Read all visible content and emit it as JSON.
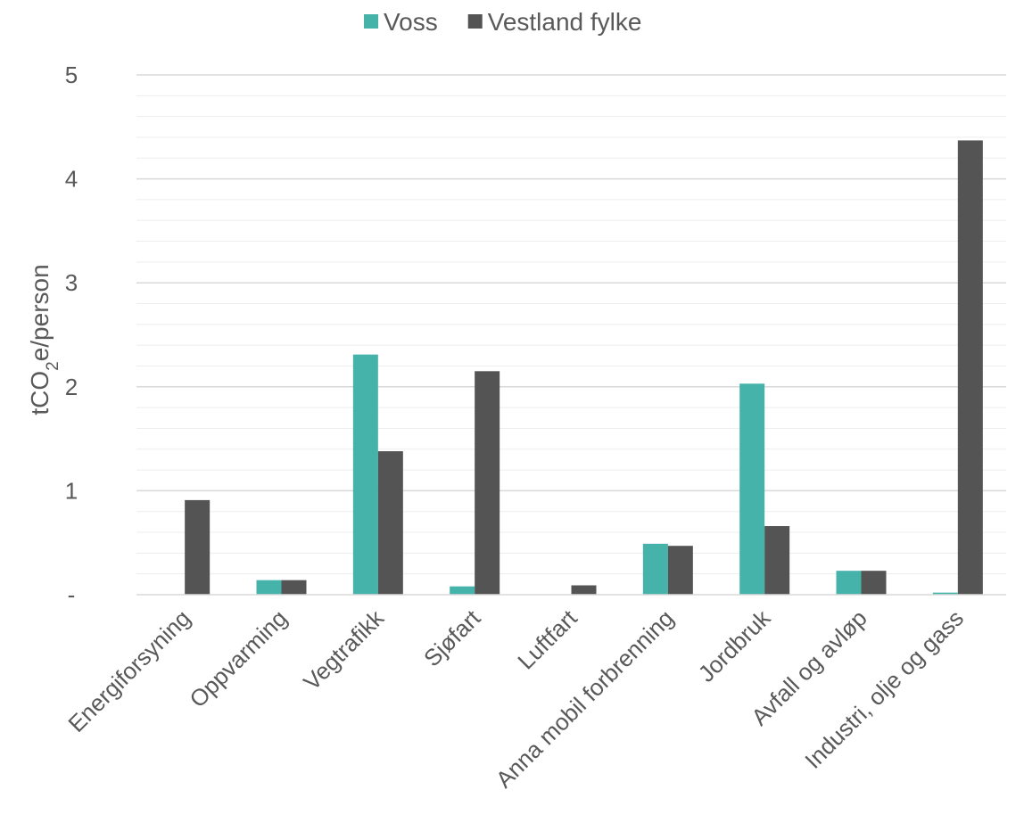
{
  "chart_data": {
    "type": "bar",
    "categories": [
      "Energiforsyning",
      "Oppvarming",
      "Vegtrafikk",
      "Sjøfart",
      "Luftfart",
      "Anna mobil forbrenning",
      "Jordbruk",
      "Avfall og avløp",
      "Industri, olje og gass"
    ],
    "series": [
      {
        "name": "Voss",
        "color": "#45B3AA",
        "values": [
          0,
          0.14,
          2.31,
          0.08,
          0,
          0.49,
          2.03,
          0.23,
          0.02
        ]
      },
      {
        "name": "Vestland fylke",
        "color": "#545454",
        "values": [
          0.91,
          0.14,
          1.38,
          2.15,
          0.09,
          0.47,
          0.66,
          0.23,
          4.37
        ]
      }
    ],
    "ylabel": {
      "prefix": "tCO",
      "subscript": "2",
      "suffix": "e/person"
    },
    "ylim": [
      0,
      5
    ],
    "yticks": [
      {
        "value": 0,
        "label": "-"
      },
      {
        "value": 1,
        "label": "1"
      },
      {
        "value": 2,
        "label": "2"
      },
      {
        "value": 3,
        "label": "3"
      },
      {
        "value": 4,
        "label": "4"
      },
      {
        "value": 5,
        "label": "5"
      }
    ],
    "minor_gridline_step": 0.2,
    "grid": true,
    "legend_position": "top-center"
  }
}
